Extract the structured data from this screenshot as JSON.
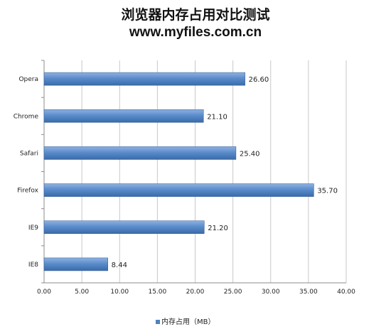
{
  "chart_data": {
    "type": "bar",
    "orientation": "horizontal",
    "title": "浏览器内存占用对比测试",
    "subtitle": "www.myfiles.com.cn",
    "categories": [
      "Opera",
      "Chrome",
      "Safari",
      "Firefox",
      "IE9",
      "IE8"
    ],
    "series": [
      {
        "name": "内存占用（MB）",
        "values": [
          26.6,
          21.1,
          25.4,
          35.7,
          21.2,
          8.44
        ],
        "labels": [
          "26.60",
          "21.10",
          "25.40",
          "35.70",
          "21.20",
          "8.44"
        ],
        "color": "#4f81bd"
      }
    ],
    "xlim": [
      0,
      40
    ],
    "xticks": [
      "0.00",
      "5.00",
      "10.00",
      "15.00",
      "20.00",
      "25.00",
      "30.00",
      "35.00",
      "40.00"
    ],
    "grid": true,
    "legend": "bottom"
  }
}
